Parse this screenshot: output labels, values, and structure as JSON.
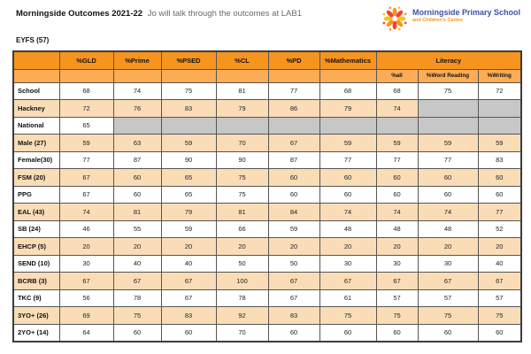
{
  "header": {
    "title_bold": "Morningside Outcomes 2021-22",
    "title_rest": "Jo will talk through the outcomes at LAB1",
    "logo": {
      "name": "Morningside Primary School",
      "subtitle": "and Children's Centre"
    }
  },
  "section_label": "EYFS (57)",
  "table": {
    "columns": [
      "%GLD",
      "%Prime",
      "%PSED",
      "%CL",
      "%PD",
      "%Mathematics"
    ],
    "literacy_group": "Literacy",
    "literacy_columns": [
      "%all",
      "%Word Reading",
      "%Writing"
    ],
    "rows": [
      {
        "label": "School",
        "shade": "white",
        "values": [
          "68",
          "74",
          "75",
          "81",
          "77",
          "68",
          "68",
          "75",
          "72"
        ]
      },
      {
        "label": "Hackney",
        "shade": "peach",
        "values": [
          "72",
          "76",
          "83",
          "79",
          "86",
          "79",
          "74",
          "",
          ""
        ]
      },
      {
        "label": "National",
        "shade": "white",
        "values": [
          "65",
          "",
          "",
          "",
          "",
          "",
          "",
          "",
          ""
        ]
      },
      {
        "label": "Male (27)",
        "shade": "peach",
        "values": [
          "59",
          "63",
          "59",
          "70",
          "67",
          "59",
          "59",
          "59",
          "59"
        ]
      },
      {
        "label": "Female(30)",
        "shade": "white",
        "values": [
          "77",
          "87",
          "90",
          "90",
          "87",
          "77",
          "77",
          "77",
          "83"
        ]
      },
      {
        "label": "FSM (20)",
        "shade": "peach",
        "values": [
          "67",
          "60",
          "65",
          "75",
          "60",
          "60",
          "60",
          "60",
          "60"
        ]
      },
      {
        "label": "PPG",
        "shade": "white",
        "values": [
          "67",
          "60",
          "65",
          "75",
          "60",
          "60",
          "60",
          "60",
          "60"
        ]
      },
      {
        "label": "EAL (43)",
        "shade": "peach",
        "values": [
          "74",
          "81",
          "79",
          "81",
          "84",
          "74",
          "74",
          "74",
          "77"
        ]
      },
      {
        "label": "SB (24)",
        "shade": "white",
        "values": [
          "46",
          "55",
          "59",
          "66",
          "59",
          "48",
          "48",
          "48",
          "52"
        ]
      },
      {
        "label": "EHCP (5)",
        "shade": "peach",
        "values": [
          "20",
          "20",
          "20",
          "20",
          "20",
          "20",
          "20",
          "20",
          "20"
        ]
      },
      {
        "label": "SEND (10)",
        "shade": "white",
        "values": [
          "30",
          "40",
          "40",
          "50",
          "50",
          "30",
          "30",
          "30",
          "40"
        ]
      },
      {
        "label": "BCRB (3)",
        "shade": "peach",
        "values": [
          "67",
          "67",
          "67",
          "100",
          "67",
          "67",
          "67",
          "67",
          "67"
        ]
      },
      {
        "label": "TKC (9)",
        "shade": "white",
        "values": [
          "56",
          "78",
          "67",
          "78",
          "67",
          "61",
          "57",
          "57",
          "57"
        ]
      },
      {
        "label": "3YO+ (26)",
        "shade": "peach",
        "values": [
          "69",
          "75",
          "83",
          "92",
          "83",
          "75",
          "75",
          "75",
          "75"
        ]
      },
      {
        "label": "2YO+ (14)",
        "shade": "white",
        "values": [
          "64",
          "60",
          "60",
          "70",
          "60",
          "60",
          "60",
          "60",
          "60"
        ]
      }
    ]
  },
  "colors": {
    "header_orange": "#F7941E",
    "subheader_orange": "#FBAC55",
    "peach_row": "#FADDB7",
    "gray_cell": "#C7C7C7",
    "logo_blue": "#3A53A4",
    "logo_orange": "#F7941E",
    "logo_red": "#EF4136",
    "logo_yellow": "#FFC10E"
  }
}
